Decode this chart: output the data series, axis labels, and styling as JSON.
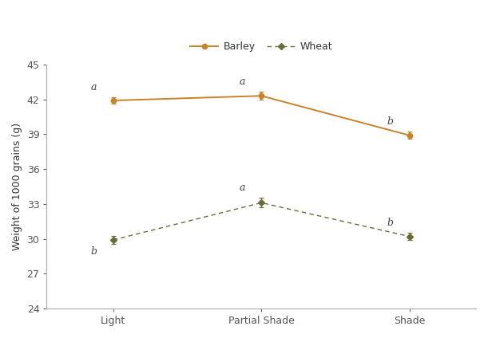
{
  "categories": [
    "Light",
    "Partial Shade",
    "Shade"
  ],
  "barley_values": [
    41.9,
    42.3,
    38.9
  ],
  "barley_errors": [
    0.25,
    0.35,
    0.3
  ],
  "wheat_values": [
    29.9,
    33.1,
    30.2
  ],
  "wheat_errors": [
    0.35,
    0.4,
    0.3
  ],
  "barley_color": "#c8832a",
  "wheat_color": "#6b6b3a",
  "barley_label": "Barley",
  "wheat_label": "Wheat",
  "ylabel": "Weight of 1000 grains (g)",
  "ylim": [
    24,
    45
  ],
  "yticks": [
    24,
    27,
    30,
    33,
    36,
    39,
    42,
    45
  ],
  "barley_letters": [
    "a",
    "a",
    "b"
  ],
  "wheat_letters": [
    "b",
    "a",
    "b"
  ],
  "background_color": "#ffffff",
  "axis_fontsize": 9,
  "tick_fontsize": 9,
  "letter_fontsize": 9
}
